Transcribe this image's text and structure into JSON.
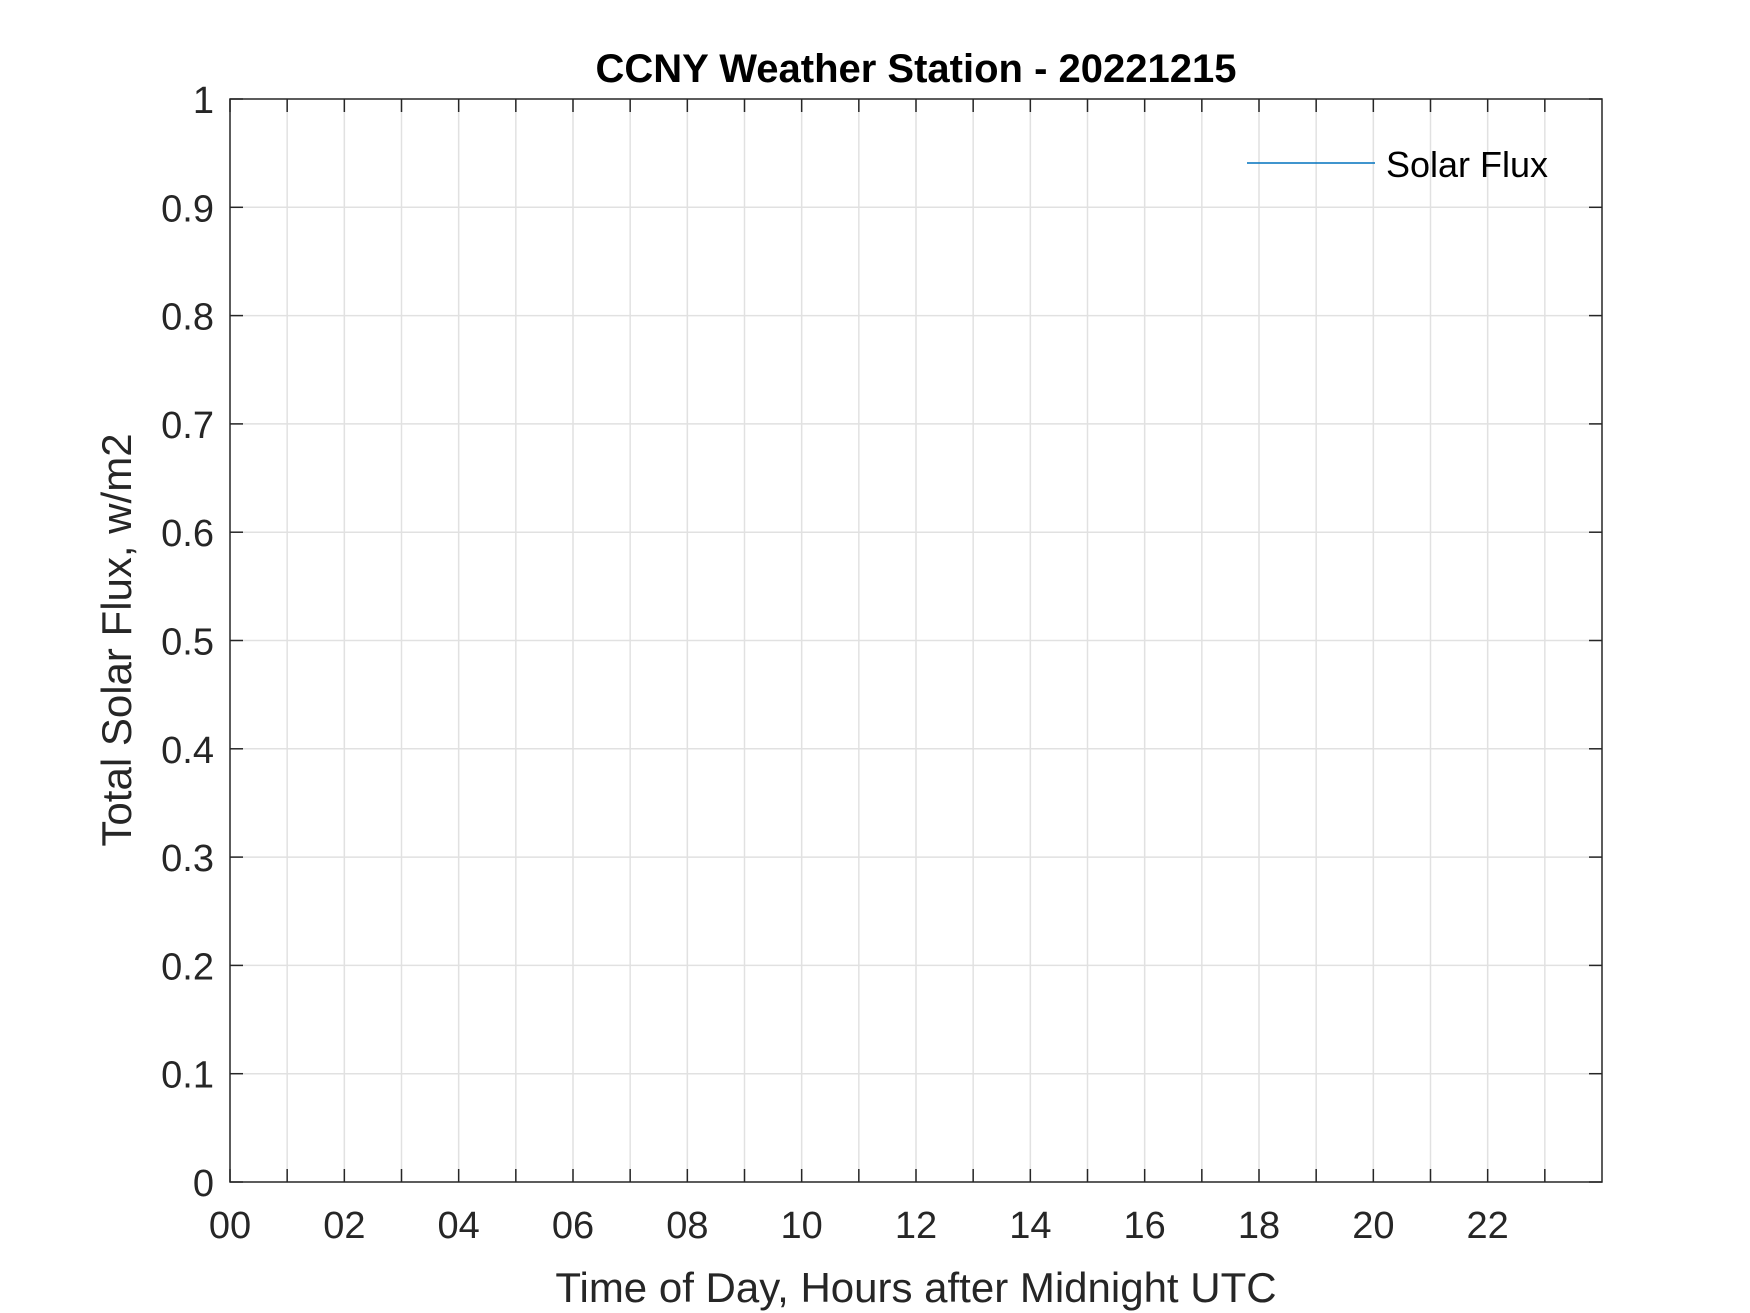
{
  "chart_data": {
    "type": "line",
    "title": "CCNY Weather Station - 20221215",
    "xlabel": "Time of Day, Hours after Midnight UTC",
    "ylabel": "Total Solar Flux, w/m2",
    "xlim": [
      0,
      24
    ],
    "ylim": [
      0,
      1
    ],
    "x_ticks": [
      0,
      2,
      4,
      6,
      8,
      10,
      12,
      14,
      16,
      18,
      20,
      22
    ],
    "x_tick_labels": [
      "00",
      "02",
      "04",
      "06",
      "08",
      "10",
      "12",
      "14",
      "16",
      "18",
      "20",
      "22"
    ],
    "x_minor_ticks": [
      1,
      3,
      5,
      7,
      9,
      11,
      13,
      15,
      17,
      19,
      21,
      23
    ],
    "y_ticks": [
      0,
      0.1,
      0.2,
      0.3,
      0.4,
      0.5,
      0.6,
      0.7,
      0.8,
      0.9,
      1
    ],
    "y_tick_labels": [
      "0",
      "0.1",
      "0.2",
      "0.3",
      "0.4",
      "0.5",
      "0.6",
      "0.7",
      "0.8",
      "0.9",
      "1"
    ],
    "grid": true,
    "legend_position": "top-right",
    "series": [
      {
        "name": "Solar Flux",
        "color": "#0072BD",
        "x": [],
        "y": []
      }
    ]
  }
}
